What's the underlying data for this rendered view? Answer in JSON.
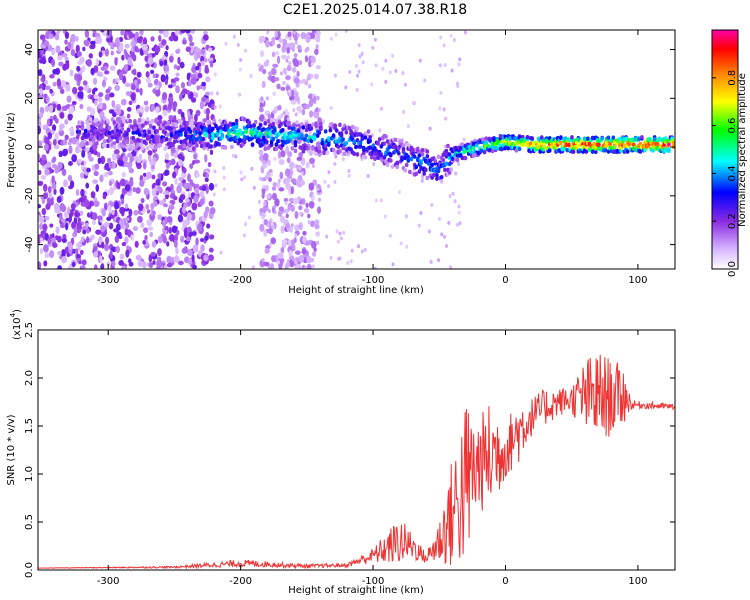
{
  "chart_data": [
    {
      "type": "heatmap",
      "title": "C2E1.2025.014.07.38.R18",
      "xlabel": "Height of straight line (km)",
      "ylabel": "Frequency (Hz)",
      "xlim": [
        -353,
        128
      ],
      "ylim": [
        -50,
        48
      ],
      "xticks": [
        "-300",
        "-200",
        "-100",
        "0",
        "100"
      ],
      "yticks": [
        "-40",
        "-20",
        "0",
        "20",
        "40"
      ],
      "colorbar": {
        "label": "Normalized spectral amplitude",
        "range": [
          0.0,
          1.0
        ],
        "ticks": [
          "0.0",
          "0.2",
          "0.4",
          "0.6",
          "0.8"
        ]
      },
      "trace": {
        "description_points_x": [
          -300,
          -250,
          -220,
          -200,
          -150,
          -120,
          -100,
          -80,
          -60,
          -50,
          -40,
          -20,
          0,
          20,
          60,
          100,
          128
        ],
        "description_points_freq": [
          6,
          5,
          5,
          6,
          4,
          3,
          0,
          -3,
          -7,
          -10,
          -3,
          0,
          2,
          1,
          1,
          1,
          1
        ],
        "amplitude": [
          0.25,
          0.3,
          0.45,
          0.5,
          0.45,
          0.4,
          0.35,
          0.35,
          0.4,
          0.35,
          0.45,
          0.6,
          0.7,
          0.85,
          0.9,
          0.92,
          0.95
        ]
      }
    },
    {
      "type": "line",
      "xlabel": "Height of straight line (km)",
      "ylabel": "SNR (10 * v/v)",
      "y_multiplier": "(x10",
      "y_multiplier_exp": "4",
      "color": "#ee3333",
      "xlim": [
        -353,
        128
      ],
      "ylim": [
        0.0,
        2.5
      ],
      "xticks": [
        "-300",
        "-200",
        "-100",
        "0",
        "100"
      ],
      "yticks": [
        "0.0",
        "0.5",
        "1.0",
        "1.5",
        "2.0",
        "2.5"
      ],
      "envelope_x": [
        -353,
        -250,
        -200,
        -180,
        -150,
        -120,
        -100,
        -80,
        -70,
        -60,
        -50,
        -40,
        -30,
        -20,
        -10,
        0,
        10,
        20,
        30,
        40,
        50,
        60,
        70,
        80,
        90,
        95,
        100,
        128
      ],
      "envelope_y": [
        0.02,
        0.03,
        0.07,
        0.06,
        0.04,
        0.05,
        0.15,
        0.3,
        0.25,
        0.12,
        0.3,
        0.6,
        0.9,
        1.1,
        1.2,
        1.25,
        1.45,
        1.6,
        1.7,
        1.75,
        1.78,
        1.8,
        1.8,
        1.8,
        1.82,
        1.72,
        1.72,
        1.7
      ],
      "noise_amp": [
        0.0,
        0.01,
        0.04,
        0.03,
        0.02,
        0.02,
        0.08,
        0.25,
        0.15,
        0.05,
        0.25,
        0.6,
        0.9,
        0.5,
        0.6,
        0.3,
        0.35,
        0.2,
        0.2,
        0.15,
        0.15,
        0.4,
        0.5,
        0.4,
        0.3,
        0.05,
        0.04,
        0.03
      ]
    }
  ]
}
